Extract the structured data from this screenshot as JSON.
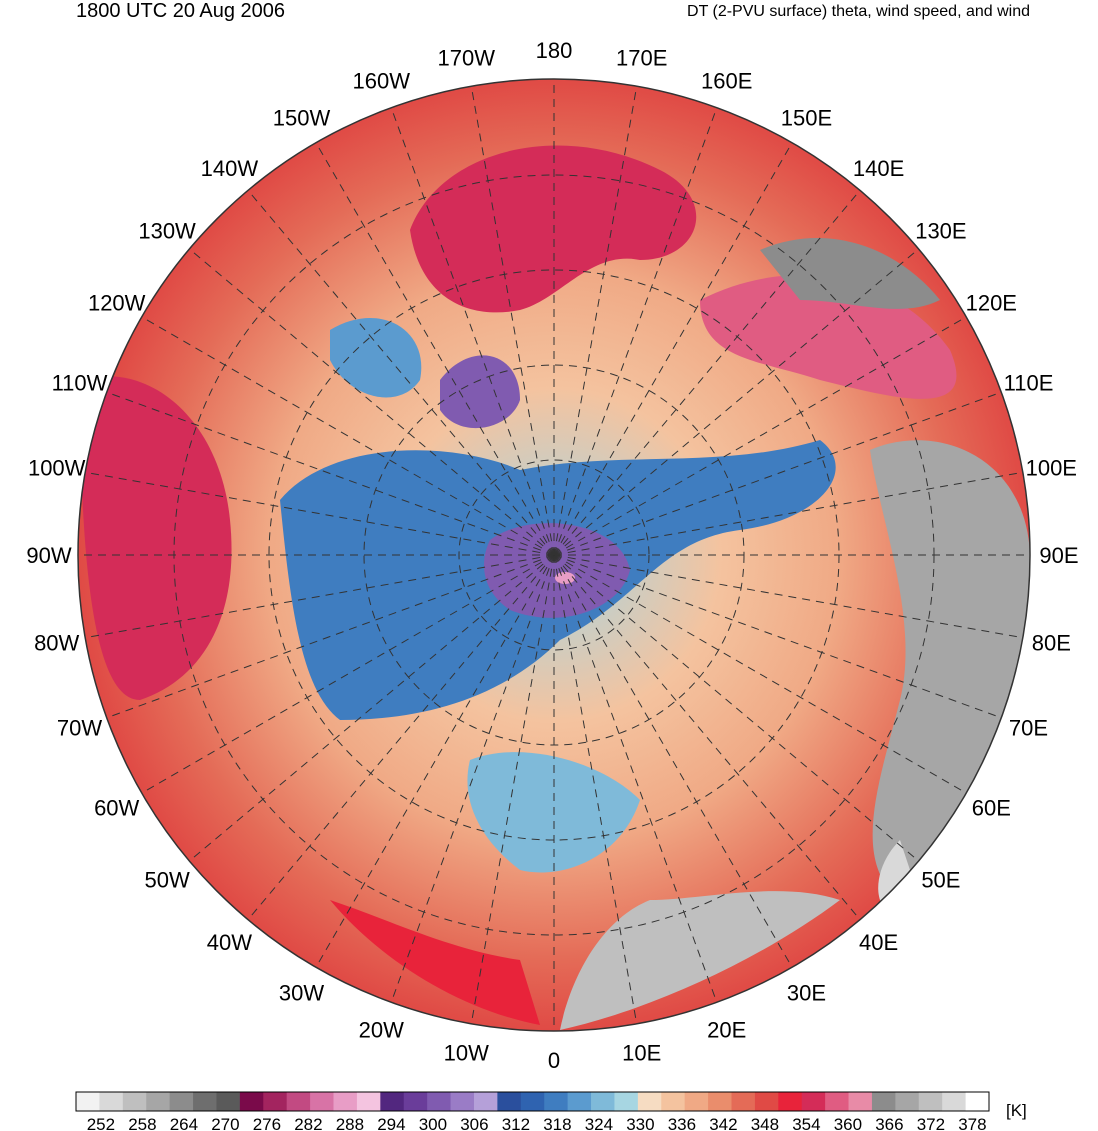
{
  "header": {
    "valid_time": "1800 UTC 20 Aug 2006",
    "field_title": "DT (2-PVU surface) theta, wind speed, and wind"
  },
  "map": {
    "projection": "north-polar-stereographic",
    "longitude_labels": [
      "180",
      "170E",
      "160E",
      "150E",
      "140E",
      "130E",
      "120E",
      "110E",
      "100E",
      "90E",
      "80E",
      "70E",
      "60E",
      "50E",
      "40E",
      "30E",
      "20E",
      "10E",
      "0",
      "10W",
      "20W",
      "30W",
      "40W",
      "50W",
      "60W",
      "70W",
      "80W",
      "90W",
      "100W",
      "110W",
      "120W",
      "130W",
      "140W",
      "150W",
      "160W",
      "170W"
    ]
  },
  "colorbar": {
    "unit": "[K]",
    "tick_labels": [
      "252",
      "258",
      "264",
      "270",
      "276",
      "282",
      "288",
      "294",
      "300",
      "306",
      "312",
      "318",
      "324",
      "330",
      "336",
      "342",
      "348",
      "354",
      "360",
      "366",
      "372",
      "378"
    ],
    "colors": [
      "#f2f2f2",
      "#d9d9d9",
      "#bfbfbf",
      "#a6a6a6",
      "#8c8c8c",
      "#6e6e6e",
      "#5a5a5a",
      "#7a0a4a",
      "#a3245f",
      "#c24a82",
      "#d873a6",
      "#e89dc6",
      "#f4c4e0",
      "#52277f",
      "#6a3d9a",
      "#805bb0",
      "#9a7cc6",
      "#b5a0d9",
      "#2a4f9d",
      "#2f63b0",
      "#3f7dc0",
      "#5b9bcf",
      "#7fbad9",
      "#a7d6e2",
      "#f6dcc2",
      "#f4c39f",
      "#f0a985",
      "#ea8d6c",
      "#e46b57",
      "#e04a45",
      "#e8233a",
      "#d42c58",
      "#e05c82",
      "#e88ba7",
      "#8c8c8c",
      "#a6a6a6",
      "#bfbfbf",
      "#d9d9d9",
      "#ffffff"
    ]
  }
}
